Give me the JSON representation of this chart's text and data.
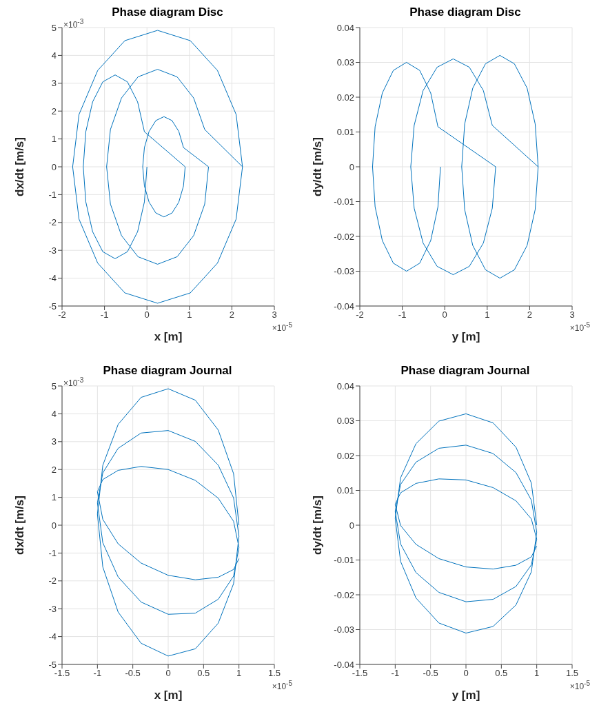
{
  "chart_data": [
    {
      "type": "line",
      "title": "Phase diagram Disc",
      "xlabel": "x [m]",
      "ylabel": "dx/dt [m/s]",
      "xlim": [
        -2,
        3
      ],
      "xticks": [
        -2,
        -1,
        0,
        1,
        2,
        3
      ],
      "ylim": [
        -5,
        5
      ],
      "yticks": [
        -5,
        -4,
        -3,
        -2,
        -1,
        0,
        1,
        2,
        3,
        4,
        5
      ],
      "grid": true,
      "annotations": [
        "×10$^{-3}$",
        "×10$^{-5}$"
      ],
      "series": [
        {
          "color": "#0072bd",
          "x": [
            2.25,
            2.1,
            1.66,
            1.02,
            0.25,
            -0.52,
            -1.16,
            -1.6,
            -1.75,
            -1.6,
            -1.16,
            -0.52,
            0.25,
            1.02,
            1.66,
            2.1,
            2.25,
            1.36,
            1.1,
            0.71,
            0.25,
            -0.21,
            -0.6,
            -0.86,
            -0.95,
            -0.86,
            -0.6,
            -0.21,
            0.25,
            0.71,
            1.1,
            1.36,
            1.45,
            0.86,
            0.75,
            0.59,
            0.4,
            0.21,
            0.05,
            -0.06,
            -0.1,
            -0.06,
            0.05,
            0.21,
            0.4,
            0.59,
            0.75,
            0.86,
            0.9,
            -0.06,
            -0.22,
            -0.46,
            -0.75,
            -1.04,
            -1.28,
            -1.44,
            -1.5,
            -1.44,
            -1.28,
            -1.04,
            -0.75,
            -0.46,
            -0.22,
            -0.06,
            0
          ],
          "values": [
            0,
            1.88,
            3.46,
            4.53,
            4.9,
            4.53,
            3.46,
            1.88,
            0,
            -1.88,
            -3.46,
            -4.53,
            -4.9,
            -4.53,
            -3.46,
            -1.88,
            0,
            1.34,
            2.47,
            3.23,
            3.5,
            3.23,
            2.47,
            1.34,
            0,
            -1.34,
            -2.47,
            -3.23,
            -3.5,
            -3.23,
            -2.47,
            -1.34,
            0,
            0.69,
            1.27,
            1.66,
            1.8,
            1.66,
            1.27,
            0.69,
            0,
            -0.69,
            -1.27,
            -1.66,
            -1.8,
            -1.66,
            -1.27,
            -0.69,
            0,
            1.26,
            2.33,
            3.05,
            3.3,
            3.05,
            2.33,
            1.26,
            0,
            -1.26,
            -2.33,
            -3.05,
            -3.3,
            -3.05,
            -2.33,
            -1.26,
            0
          ]
        }
      ]
    },
    {
      "type": "line",
      "title": "Phase diagram Disc",
      "xlabel": "y [m]",
      "ylabel": "dy/dt [m/s]",
      "xlim": [
        -2,
        3
      ],
      "xticks": [
        -2,
        -1,
        0,
        1,
        2,
        3
      ],
      "ylim": [
        -0.04,
        0.04
      ],
      "yticks": [
        -0.04,
        -0.03,
        -0.02,
        -0.01,
        0,
        0.01,
        0.02,
        0.03,
        0.04
      ],
      "grid": true,
      "annotations": [
        "×10$^{-5}$"
      ],
      "series": [
        {
          "color": "#0072bd",
          "x": [
            2.2,
            2.13,
            1.94,
            1.64,
            1.3,
            0.96,
            0.66,
            0.47,
            0.4,
            0.47,
            0.66,
            0.96,
            1.3,
            1.64,
            1.94,
            2.13,
            2.2,
            1.12,
            0.91,
            0.58,
            0.2,
            -0.18,
            -0.51,
            -0.72,
            -0.8,
            -0.72,
            -0.51,
            -0.18,
            0.2,
            0.58,
            0.91,
            1.12,
            1.2,
            -0.16,
            -0.33,
            -0.59,
            -0.9,
            -1.21,
            -1.47,
            -1.64,
            -1.7,
            -1.64,
            -1.47,
            -1.21,
            -0.9,
            -0.59,
            -0.33,
            -0.16,
            -0.1
          ],
          "values": [
            0,
            0.0123,
            0.0226,
            0.0296,
            0.032,
            0.0296,
            0.0226,
            0.0123,
            0,
            -0.0123,
            -0.0226,
            -0.0296,
            -0.032,
            -0.0296,
            -0.0226,
            -0.0123,
            0,
            0.0119,
            0.0219,
            0.0286,
            0.031,
            0.0286,
            0.0219,
            0.0119,
            0,
            -0.0119,
            -0.0219,
            -0.0286,
            -0.031,
            -0.0286,
            -0.0219,
            -0.0119,
            0,
            0.0115,
            0.0212,
            0.0277,
            0.03,
            0.0277,
            0.0212,
            0.0115,
            0,
            -0.0115,
            -0.0212,
            -0.0277,
            -0.03,
            -0.0277,
            -0.0212,
            -0.0115,
            0
          ]
        }
      ]
    },
    {
      "type": "line",
      "title": "Phase diagram Journal",
      "xlabel": "x [m]",
      "ylabel": "dx/dt [m/s]",
      "xlim": [
        -1.5,
        1.5
      ],
      "xticks": [
        -1.5,
        -1,
        -0.5,
        0,
        0.5,
        1,
        1.5
      ],
      "ylim": [
        -5,
        5
      ],
      "yticks": [
        -5,
        -4,
        -3,
        -2,
        -1,
        0,
        1,
        2,
        3,
        4,
        5
      ],
      "grid": true,
      "annotations": [
        "×10$^{-3}$",
        "×10$^{-5}$"
      ],
      "series": [
        {
          "color": "#0072bd",
          "x": [
            1,
            0.924,
            0.707,
            0.383,
            0,
            -0.383,
            -0.707,
            -0.924,
            -1,
            -0.924,
            -0.707,
            -0.383,
            0,
            0.383,
            0.707,
            0.924,
            1,
            0.924,
            0.707,
            0.383,
            0,
            -0.383,
            -0.707,
            -0.924,
            -1,
            -0.924,
            -0.707,
            -0.383,
            0,
            0.383,
            0.707,
            0.924,
            1,
            0.924,
            0.707,
            0.383,
            0,
            -0.383,
            -0.707,
            -0.924,
            -1,
            -0.924,
            -0.707,
            -0.383,
            0,
            0.383,
            0.707,
            0.924,
            1
          ],
          "values": [
            0,
            1.85,
            3.42,
            4.49,
            4.9,
            4.59,
            3.62,
            2.15,
            0.4,
            -1.5,
            -3.12,
            -4.24,
            -4.7,
            -4.44,
            -3.52,
            -2.1,
            -0.4,
            0.98,
            2.16,
            3.01,
            3.4,
            3.31,
            2.76,
            1.88,
            0.8,
            -0.63,
            -1.86,
            -2.76,
            -3.2,
            -3.16,
            -2.66,
            -1.83,
            -0.8,
            0.14,
            0.97,
            1.61,
            2.0,
            2.11,
            1.97,
            1.64,
            1.2,
            0.21,
            -0.67,
            -1.36,
            -1.8,
            -1.96,
            -1.87,
            -1.59,
            -1.2
          ]
        }
      ]
    },
    {
      "type": "line",
      "title": "Phase diagram Journal",
      "xlabel": "y [m]",
      "ylabel": "dy/dt [m/s]",
      "xlim": [
        -1.5,
        1.5
      ],
      "xticks": [
        -1.5,
        -1,
        -0.5,
        0,
        0.5,
        1,
        1.5
      ],
      "ylim": [
        -0.04,
        0.04
      ],
      "yticks": [
        -0.04,
        -0.03,
        -0.02,
        -0.01,
        0,
        0.01,
        0.02,
        0.03,
        0.04
      ],
      "grid": true,
      "annotations": [
        "×10$^{-5}$"
      ],
      "series": [
        {
          "color": "#0072bd",
          "x": [
            1,
            0.924,
            0.707,
            0.383,
            0,
            -0.383,
            -0.707,
            -0.924,
            -1,
            -0.924,
            -0.707,
            -0.383,
            0,
            0.383,
            0.707,
            0.924,
            1,
            0.924,
            0.707,
            0.383,
            0,
            -0.383,
            -0.707,
            -0.924,
            -1,
            -0.924,
            -0.707,
            -0.383,
            0,
            0.383,
            0.707,
            0.924,
            1,
            0.924,
            0.707,
            0.383,
            0,
            -0.383,
            -0.707,
            -0.924,
            -1,
            -0.924,
            -0.707,
            -0.383,
            0,
            0.383,
            0.707,
            0.924,
            1
          ],
          "values": [
            0,
            0.0121,
            0.0224,
            0.0294,
            0.032,
            0.0299,
            0.0234,
            0.0136,
            0.002,
            -0.0104,
            -0.0209,
            -0.0281,
            -0.031,
            -0.0291,
            -0.0229,
            -0.0134,
            -0.002,
            0.0072,
            0.0151,
            0.0206,
            0.023,
            0.0221,
            0.0181,
            0.0117,
            0.004,
            -0.0054,
            -0.0136,
            -0.0193,
            -0.022,
            -0.0213,
            -0.0176,
            -0.0114,
            -0.004,
            0.0018,
            0.007,
            0.0108,
            0.013,
            0.0133,
            0.012,
            0.0093,
            0.006,
            -0.0001,
            -0.0055,
            -0.0096,
            -0.012,
            -0.0126,
            -0.0115,
            -0.0091,
            -0.006
          ]
        }
      ]
    }
  ]
}
